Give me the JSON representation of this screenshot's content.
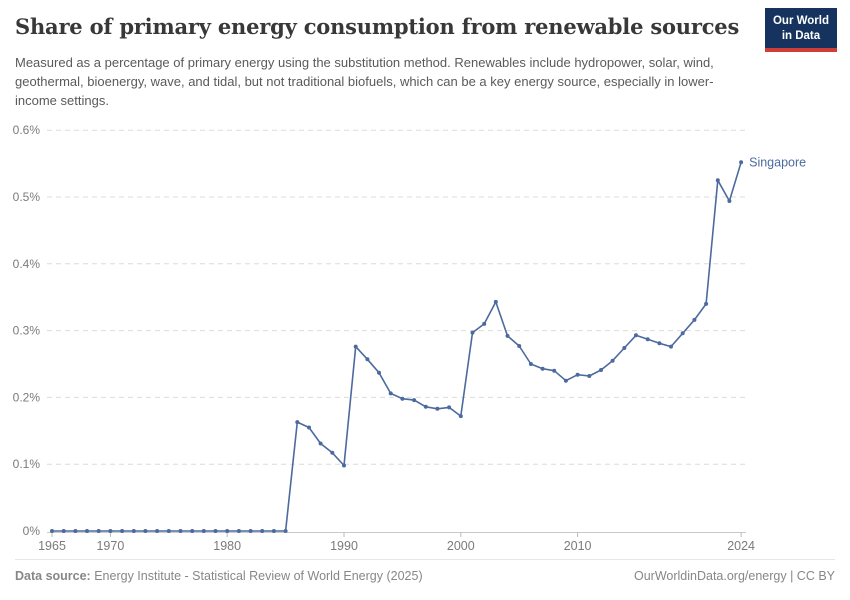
{
  "header": {
    "title": "Share of primary energy consumption from renewable sources",
    "subtitle": "Measured as a percentage of primary energy using the substitution method. Renewables include hydropower, solar, wind, geothermal, bioenergy, wave, and tidal, but not traditional biofuels, which can be a key energy source, especially in lower-income settings.",
    "logo": {
      "line1": "Our World",
      "line2": "in Data",
      "bg_color": "#15335e",
      "accent_color": "#cf3e36"
    }
  },
  "chart_data": {
    "type": "line",
    "title": "Share of primary energy consumption from renewable sources",
    "xlabel": "",
    "ylabel": "",
    "xlim": [
      1965,
      2024
    ],
    "ylim": [
      0,
      0.6
    ],
    "grid": "horizontal-dashed",
    "legend_position": "end-of-line-label",
    "x_ticks": [
      1965,
      1970,
      1980,
      1990,
      2000,
      2010,
      2024
    ],
    "y_ticks": [
      0,
      0.1,
      0.2,
      0.3,
      0.4,
      0.5,
      0.6
    ],
    "y_tick_labels": [
      "0%",
      "0.1%",
      "0.2%",
      "0.3%",
      "0.4%",
      "0.5%",
      "0.6%"
    ],
    "series": [
      {
        "name": "Singapore",
        "color": "#4c6a9e",
        "years": [
          1965,
          1966,
          1967,
          1968,
          1969,
          1970,
          1971,
          1972,
          1973,
          1974,
          1975,
          1976,
          1977,
          1978,
          1979,
          1980,
          1981,
          1982,
          1983,
          1984,
          1985,
          1986,
          1987,
          1988,
          1989,
          1990,
          1991,
          1992,
          1993,
          1994,
          1995,
          1996,
          1997,
          1998,
          1999,
          2000,
          2001,
          2002,
          2003,
          2004,
          2005,
          2006,
          2007,
          2008,
          2009,
          2010,
          2011,
          2012,
          2013,
          2014,
          2015,
          2016,
          2017,
          2018,
          2019,
          2020,
          2021,
          2022,
          2023,
          2024
        ],
        "values": [
          0,
          0,
          0,
          0,
          0,
          0,
          0,
          0,
          0,
          0,
          0,
          0,
          0,
          0,
          0,
          0,
          0,
          0,
          0,
          0,
          0,
          0.163,
          0.155,
          0.131,
          0.117,
          0.098,
          0.276,
          0.257,
          0.237,
          0.206,
          0.198,
          0.196,
          0.186,
          0.183,
          0.185,
          0.172,
          0.297,
          0.31,
          0.343,
          0.292,
          0.277,
          0.25,
          0.243,
          0.24,
          0.225,
          0.234,
          0.232,
          0.241,
          0.255,
          0.274,
          0.293,
          0.287,
          0.281,
          0.276,
          0.296,
          0.316,
          0.34,
          0.525,
          0.494,
          0.552
        ]
      }
    ]
  },
  "footer": {
    "source_label": "Data source:",
    "source_text": "Energy Institute - Statistical Review of World Energy (2025)",
    "right_text": "OurWorldinData.org/energy | CC BY"
  }
}
